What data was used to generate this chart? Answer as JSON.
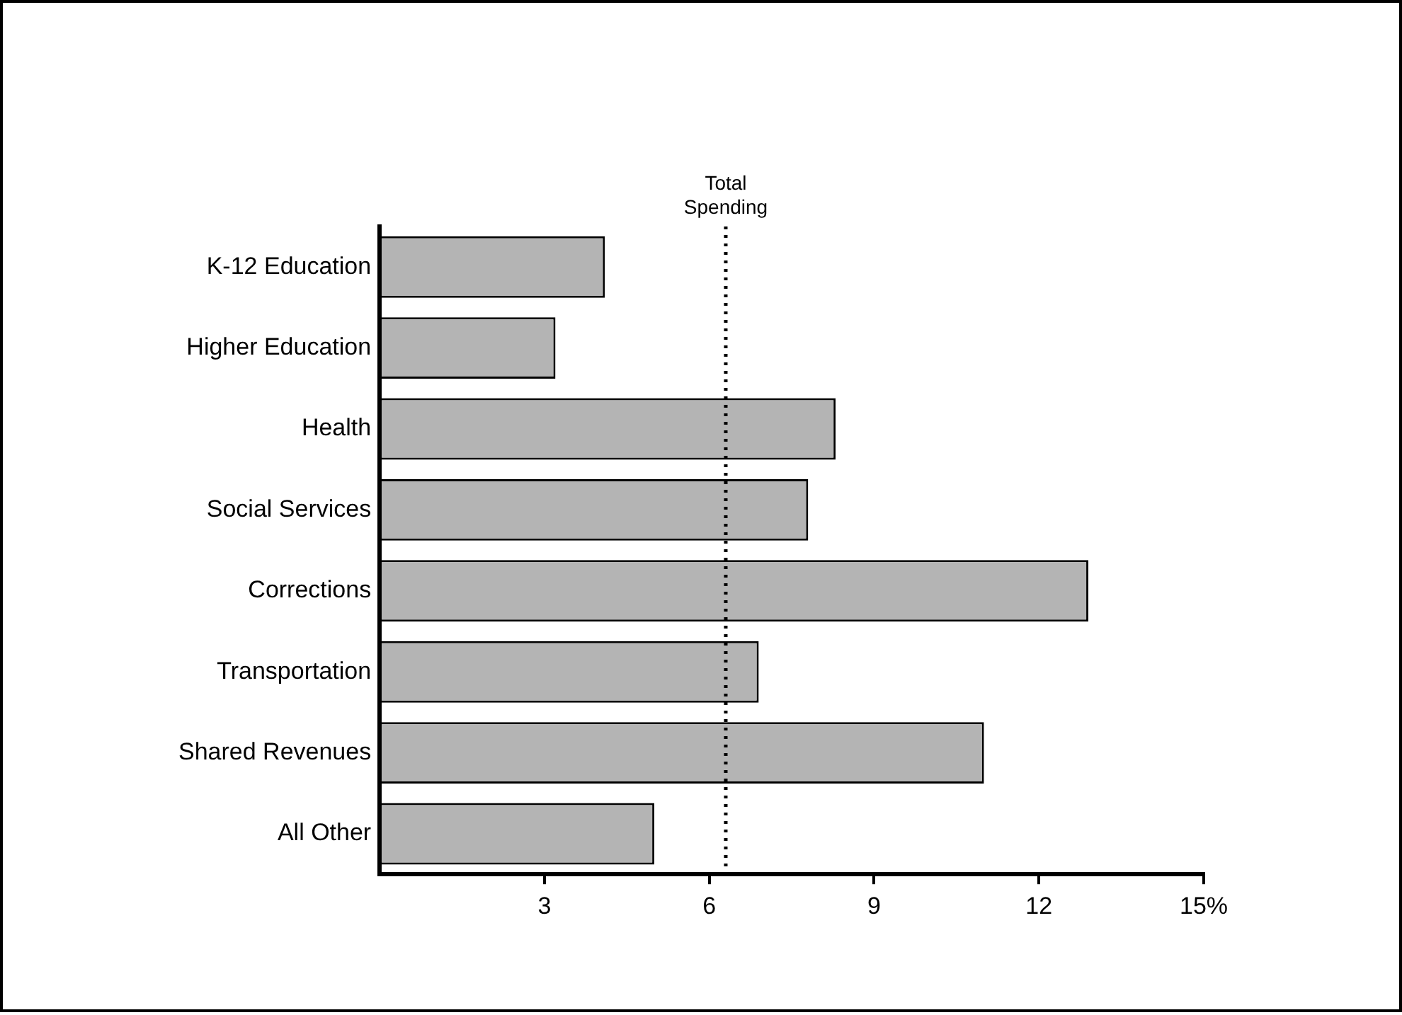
{
  "chart_data": {
    "type": "bar",
    "orientation": "horizontal",
    "categories": [
      "K-12 Education",
      "Higher Education",
      "Health",
      "Social Services",
      "Corrections",
      "Transportation",
      "Shared Revenues",
      "All Other"
    ],
    "values": [
      4.1,
      3.2,
      8.3,
      7.8,
      12.9,
      6.9,
      11.0,
      5.0
    ],
    "color": "#b4b4b4",
    "xlim": [
      0,
      15
    ],
    "xticks": [
      3,
      6,
      9,
      12,
      {
        "value": 15,
        "label": "15%"
      }
    ],
    "ref_lines": [
      {
        "axis": "x",
        "value": 6.3,
        "label": "Total Spending",
        "line_style": "dotted",
        "color": "#000000"
      }
    ],
    "grid": false,
    "legend": false
  }
}
